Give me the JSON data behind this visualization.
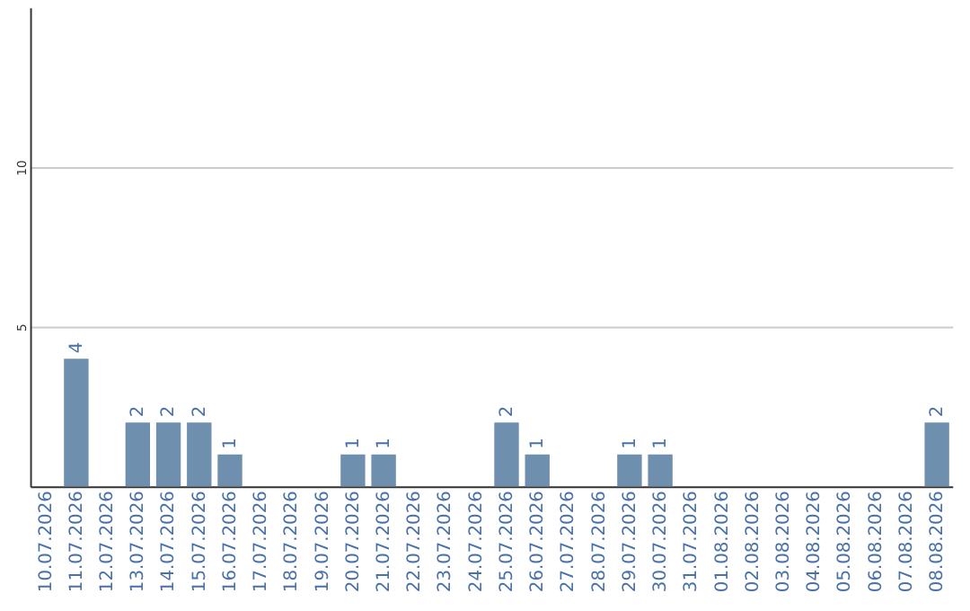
{
  "chart_data": {
    "type": "bar",
    "categories": [
      "10.07.2026",
      "11.07.2026",
      "12.07.2026",
      "13.07.2026",
      "14.07.2026",
      "15.07.2026",
      "16.07.2026",
      "17.07.2026",
      "18.07.2026",
      "19.07.2026",
      "20.07.2026",
      "21.07.2026",
      "22.07.2026",
      "23.07.2026",
      "24.07.2026",
      "25.07.2026",
      "26.07.2026",
      "27.07.2026",
      "28.07.2026",
      "29.07.2026",
      "30.07.2026",
      "31.07.2026",
      "01.08.2026",
      "02.08.2026",
      "03.08.2026",
      "04.08.2026",
      "05.08.2026",
      "06.08.2026",
      "07.08.2026",
      "08.08.2026"
    ],
    "values": [
      0,
      4,
      0,
      2,
      2,
      2,
      1,
      0,
      0,
      0,
      1,
      1,
      0,
      0,
      0,
      2,
      1,
      0,
      0,
      1,
      1,
      0,
      0,
      0,
      0,
      0,
      0,
      0,
      0,
      2
    ],
    "value_labels": [
      null,
      "4",
      null,
      "2",
      "2",
      "2",
      "1",
      null,
      null,
      null,
      "1",
      "1",
      null,
      null,
      null,
      "2",
      "1",
      null,
      null,
      "1",
      "1",
      null,
      null,
      null,
      null,
      null,
      null,
      null,
      null,
      "2"
    ],
    "color": "#6f8fae",
    "ylim": [
      0,
      15
    ],
    "yticks": [
      5,
      10
    ],
    "grid": "y"
  }
}
